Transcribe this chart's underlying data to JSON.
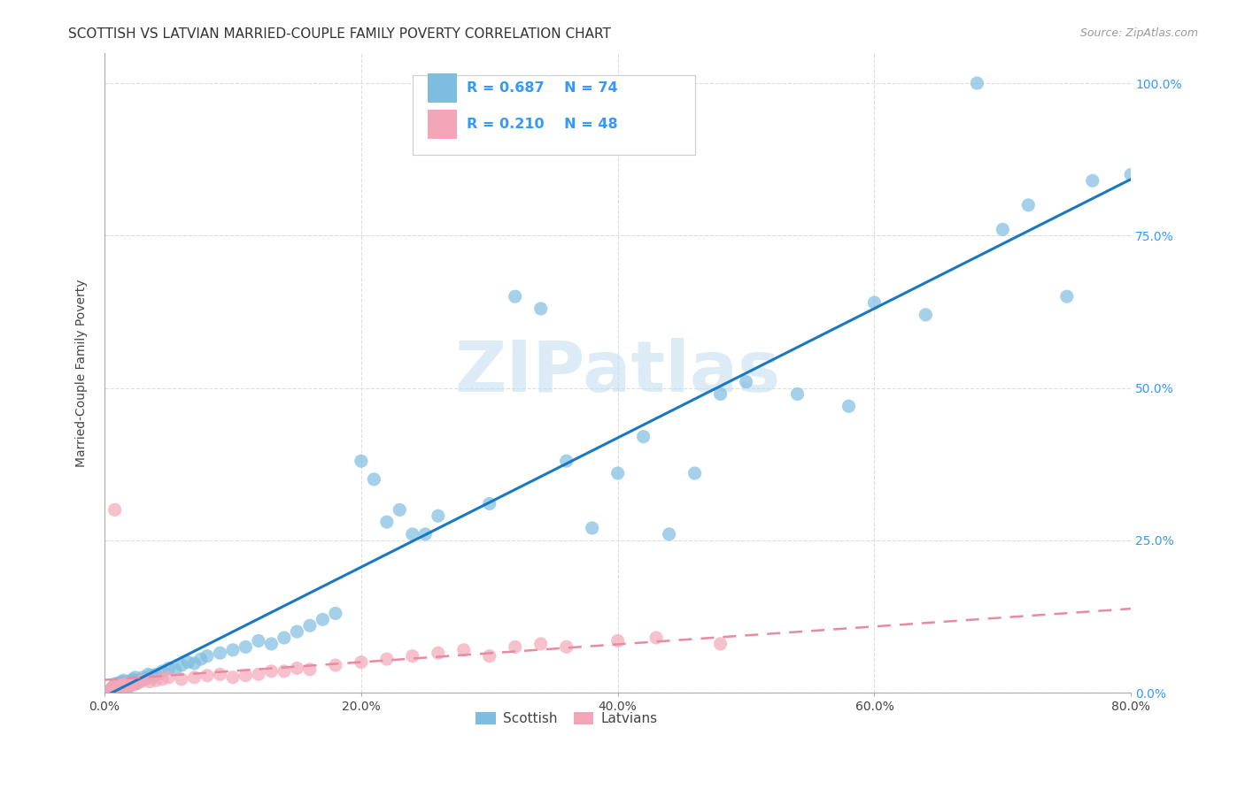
{
  "title": "SCOTTISH VS LATVIAN MARRIED-COUPLE FAMILY POVERTY CORRELATION CHART",
  "source": "Source: ZipAtlas.com",
  "ylabel": "Married-Couple Family Poverty",
  "xlim": [
    0.0,
    0.8
  ],
  "ylim": [
    0.0,
    1.05
  ],
  "xtick_values": [
    0.0,
    0.2,
    0.4,
    0.6,
    0.8
  ],
  "xtick_labels": [
    "0.0%",
    "20.0%",
    "40.0%",
    "60.0%",
    "80.0%"
  ],
  "ytick_values": [
    0.0,
    0.25,
    0.5,
    0.75,
    1.0
  ],
  "ytick_labels": [
    "0.0%",
    "25.0%",
    "50.0%",
    "75.0%",
    "100.0%"
  ],
  "scottish_color": "#7fbde0",
  "latvian_color": "#f4a6b8",
  "scottish_line_color": "#1a78c2",
  "latvian_line_color": "#e88aa0",
  "scottish_R": 0.687,
  "scottish_N": 74,
  "latvian_R": 0.21,
  "latvian_N": 48,
  "watermark_text": "ZIPatlas",
  "watermark_color": "#c5dff0",
  "grid_color": "#dddddd",
  "scottish_x": [
    0.005,
    0.006,
    0.007,
    0.008,
    0.009,
    0.01,
    0.011,
    0.012,
    0.013,
    0.014,
    0.015,
    0.016,
    0.017,
    0.018,
    0.019,
    0.02,
    0.021,
    0.022,
    0.023,
    0.024,
    0.025,
    0.028,
    0.03,
    0.032,
    0.034,
    0.036,
    0.038,
    0.04,
    0.045,
    0.05,
    0.055,
    0.06,
    0.065,
    0.07,
    0.075,
    0.08,
    0.09,
    0.1,
    0.11,
    0.12,
    0.13,
    0.14,
    0.15,
    0.16,
    0.17,
    0.18,
    0.2,
    0.21,
    0.22,
    0.23,
    0.24,
    0.25,
    0.26,
    0.3,
    0.32,
    0.34,
    0.36,
    0.38,
    0.4,
    0.42,
    0.44,
    0.46,
    0.48,
    0.5,
    0.54,
    0.58,
    0.6,
    0.64,
    0.68,
    0.7,
    0.72,
    0.75,
    0.77,
    0.8
  ],
  "scottish_y": [
    0.005,
    0.008,
    0.01,
    0.012,
    0.015,
    0.008,
    0.01,
    0.015,
    0.018,
    0.012,
    0.02,
    0.015,
    0.012,
    0.018,
    0.01,
    0.015,
    0.018,
    0.022,
    0.02,
    0.025,
    0.015,
    0.02,
    0.025,
    0.022,
    0.03,
    0.028,
    0.025,
    0.03,
    0.035,
    0.04,
    0.038,
    0.045,
    0.05,
    0.048,
    0.055,
    0.06,
    0.065,
    0.07,
    0.075,
    0.085,
    0.08,
    0.09,
    0.1,
    0.11,
    0.12,
    0.13,
    0.38,
    0.35,
    0.28,
    0.3,
    0.26,
    0.26,
    0.29,
    0.31,
    0.65,
    0.63,
    0.38,
    0.27,
    0.36,
    0.42,
    0.26,
    0.36,
    0.49,
    0.51,
    0.49,
    0.47,
    0.64,
    0.62,
    1.0,
    0.76,
    0.8,
    0.65,
    0.84,
    0.85
  ],
  "latvian_x": [
    0.005,
    0.006,
    0.007,
    0.008,
    0.009,
    0.01,
    0.011,
    0.012,
    0.013,
    0.014,
    0.015,
    0.016,
    0.017,
    0.018,
    0.019,
    0.02,
    0.022,
    0.025,
    0.028,
    0.03,
    0.035,
    0.04,
    0.045,
    0.05,
    0.06,
    0.07,
    0.08,
    0.09,
    0.1,
    0.11,
    0.12,
    0.13,
    0.14,
    0.15,
    0.16,
    0.18,
    0.2,
    0.22,
    0.24,
    0.26,
    0.28,
    0.3,
    0.32,
    0.34,
    0.36,
    0.4,
    0.43,
    0.48
  ],
  "latvian_y": [
    0.005,
    0.008,
    0.01,
    0.3,
    0.008,
    0.01,
    0.012,
    0.008,
    0.01,
    0.012,
    0.01,
    0.012,
    0.015,
    0.01,
    0.012,
    0.015,
    0.012,
    0.015,
    0.018,
    0.02,
    0.018,
    0.02,
    0.022,
    0.025,
    0.022,
    0.025,
    0.028,
    0.03,
    0.025,
    0.028,
    0.03,
    0.035,
    0.035,
    0.04,
    0.038,
    0.045,
    0.05,
    0.055,
    0.06,
    0.065,
    0.07,
    0.06,
    0.075,
    0.08,
    0.075,
    0.085,
    0.09,
    0.08
  ]
}
